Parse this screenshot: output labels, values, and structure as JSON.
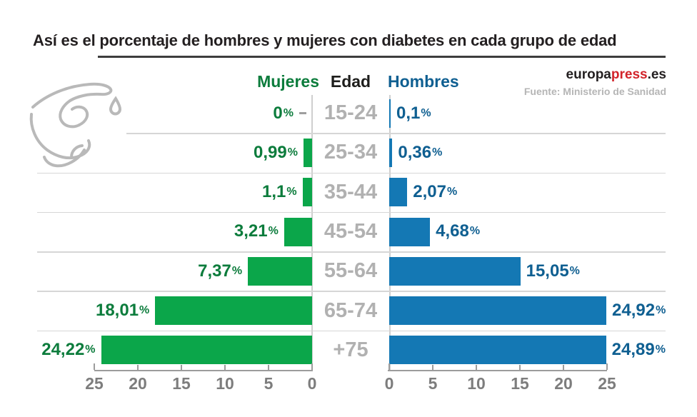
{
  "title": "Así es el porcentaje de hombres y mujeres con diabetes en cada grupo de edad",
  "brand": {
    "part1": "europa",
    "part2": "press",
    "part3": ".es",
    "accent_color": "#d2232a"
  },
  "source_line": "Fuente: Ministerio de Sanidad",
  "chart_data": {
    "type": "bar",
    "layout": "population-pyramid",
    "center_header": "Edad",
    "categories": [
      "15-24",
      "25-34",
      "35-44",
      "45-54",
      "55-64",
      "65-74",
      "+75"
    ],
    "series": [
      {
        "name": "Mujeres",
        "side": "left",
        "bar_color": "#0ba64a",
        "text_color": "#0c7c3c",
        "values": [
          0,
          0.99,
          1.1,
          3.21,
          7.37,
          18.01,
          24.22
        ],
        "labels": [
          "0%",
          "0,99%",
          "1,1%",
          "3,21%",
          "7,37%",
          "18,01%",
          "24,22%"
        ]
      },
      {
        "name": "Hombres",
        "side": "right",
        "bar_color": "#1478b4",
        "text_color": "#0f5f91",
        "values": [
          0.1,
          0.36,
          2.07,
          4.68,
          15.05,
          24.92,
          24.89
        ],
        "labels": [
          "0,1%",
          "0,36%",
          "2,07%",
          "4,68%",
          "15,05%",
          "24,92%",
          "24,89%"
        ]
      }
    ],
    "axis_ticks": [
      0,
      5,
      10,
      15,
      20,
      25
    ],
    "xlim": [
      0,
      25
    ],
    "grid": "horizontal-row-separators",
    "legend_position": "top-center-headers"
  }
}
